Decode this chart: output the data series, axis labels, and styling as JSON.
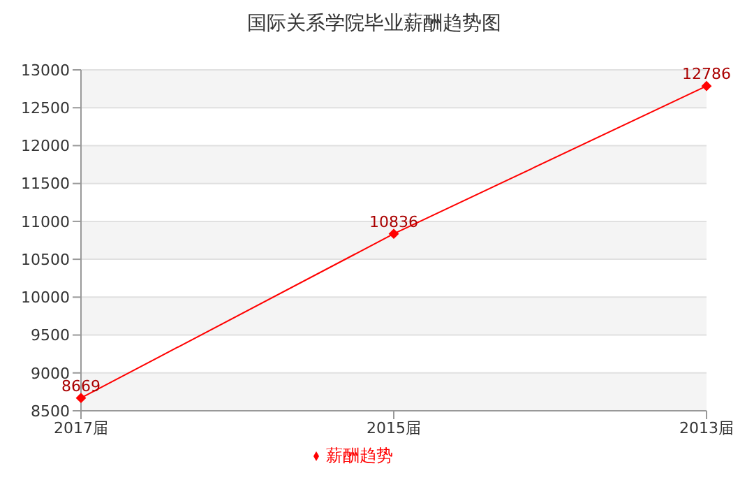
{
  "chart_data": {
    "type": "line",
    "title": "国际关系学院毕业薪酬趋势图",
    "categories": [
      "2017届",
      "2015届",
      "2013届"
    ],
    "series": [
      {
        "name": "薪酬趋势",
        "color": "#ff0000",
        "values": [
          8669,
          10836,
          12786
        ]
      }
    ],
    "ylim": [
      8500,
      13000
    ],
    "yticks": [
      8500,
      9000,
      9500,
      10000,
      10500,
      11000,
      11500,
      12000,
      12500,
      13000
    ],
    "grid": "y",
    "legend": "bottom",
    "marker": "diamond",
    "data_labels": true
  }
}
